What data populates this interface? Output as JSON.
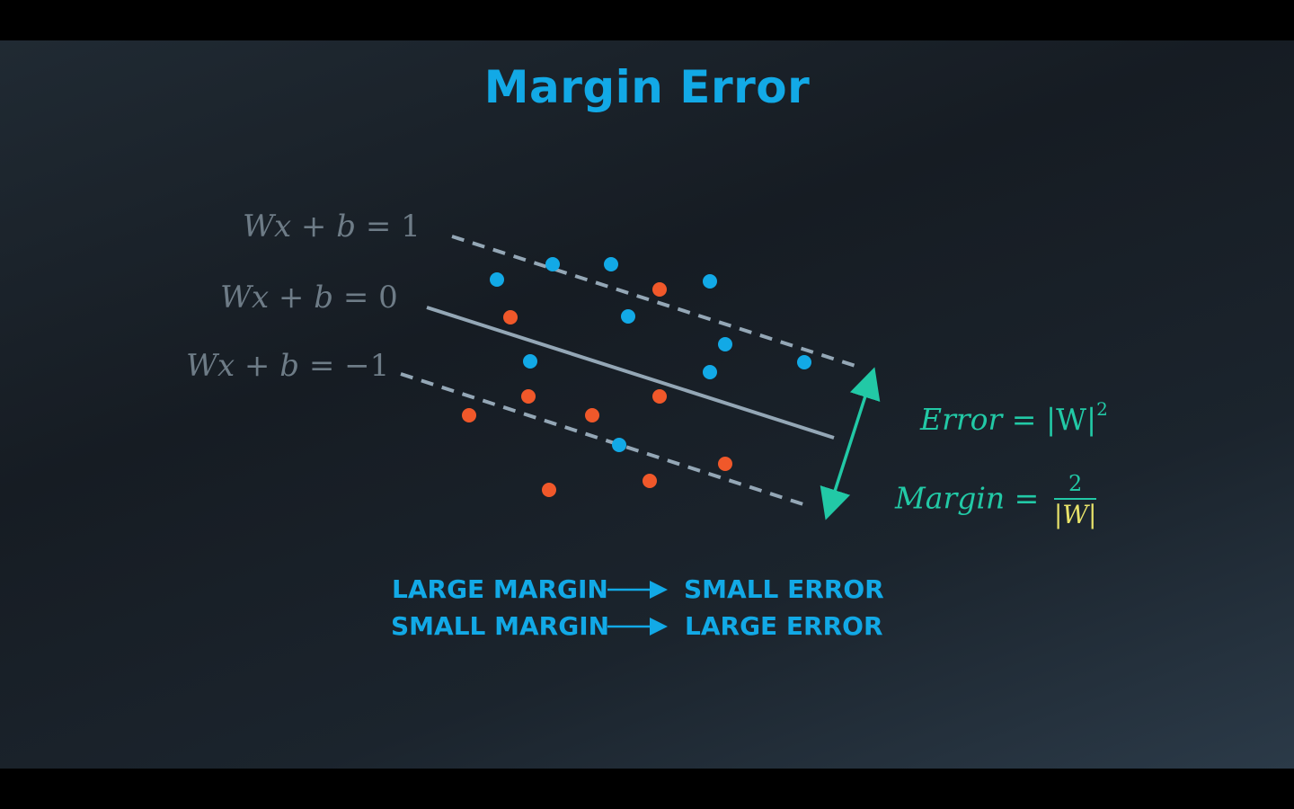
{
  "title": "Margin Error",
  "equations": {
    "top": {
      "lhs": "Wx + b",
      "eq": "=",
      "rhs": "1"
    },
    "mid": {
      "lhs": "Wx + b",
      "eq": "=",
      "rhs": "0"
    },
    "bot": {
      "lhs": "Wx + b",
      "eq": "=",
      "rhs": "−1"
    }
  },
  "formulas": {
    "error": {
      "label": "Error",
      "eq": "=",
      "value": "|W|",
      "exponent": "2"
    },
    "margin": {
      "label": "Margin",
      "eq": "=",
      "numerator": "2",
      "denominator": "|W|"
    }
  },
  "statements": [
    {
      "left": "LARGE MARGIN",
      "right": "SMALL ERROR"
    },
    {
      "left": "SMALL MARGIN",
      "right": "LARGE ERROR"
    }
  ],
  "colors": {
    "blue_points": "#12a9e6",
    "red_points": "#f0582a",
    "lines": "#94a7b6",
    "accent": "#22c9a6",
    "highlight": "#e8e36a"
  },
  "icons": [
    "double-arrow-icon",
    "right-arrow-icon"
  ]
}
